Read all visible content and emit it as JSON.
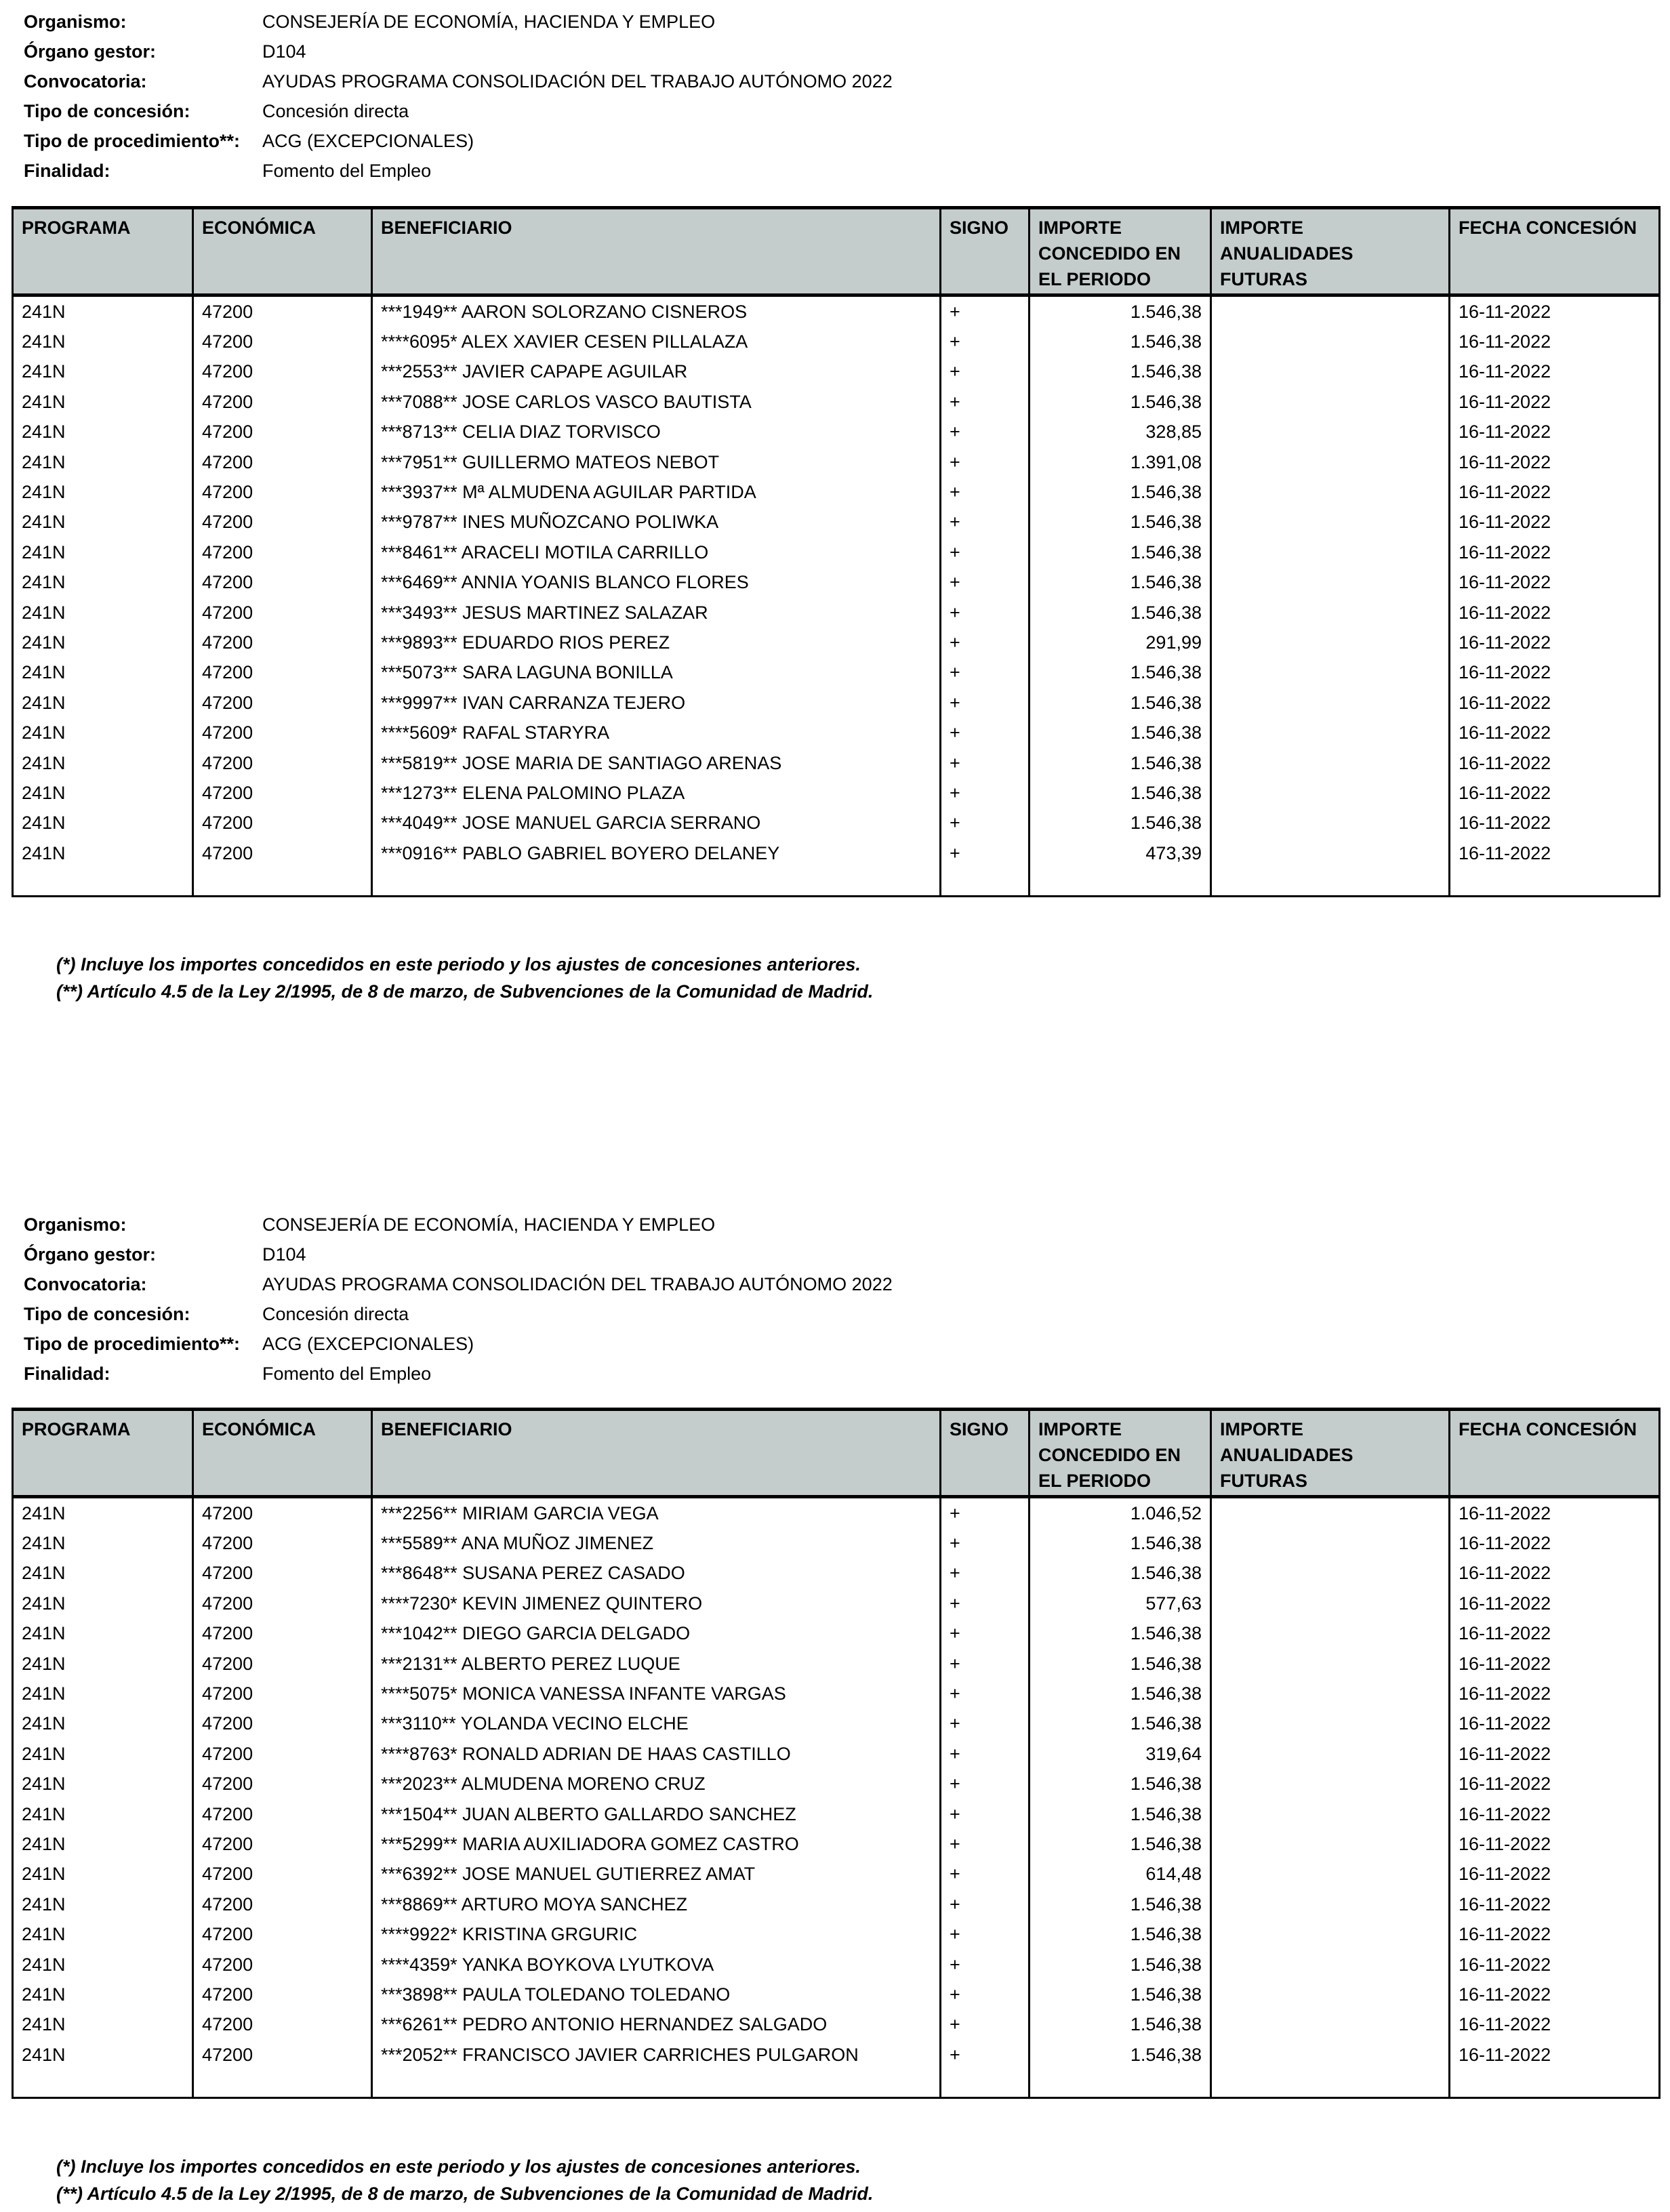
{
  "meta": [
    {
      "label": "Organismo:",
      "value": "CONSEJERÍA DE ECONOMÍA, HACIENDA Y EMPLEO"
    },
    {
      "label": "Órgano gestor:",
      "value": "D104"
    },
    {
      "label": "Convocatoria:",
      "value": "AYUDAS PROGRAMA CONSOLIDACIÓN DEL TRABAJO AUTÓNOMO 2022"
    },
    {
      "label": "Tipo de concesión:",
      "value": "Concesión directa"
    },
    {
      "label": "Tipo de procedimiento**:",
      "value": "ACG (EXCEPCIONALES)"
    },
    {
      "label": "Finalidad:",
      "value": "Fomento del Empleo"
    }
  ],
  "columns": [
    "PROGRAMA",
    "ECONÓMICA",
    "BENEFICIARIO",
    "SIGNO",
    "IMPORTE CONCEDIDO EN EL PERIODO",
    "IMPORTE ANUALIDADES FUTURAS",
    "FECHA CONCESIÓN"
  ],
  "footnotes": [
    "(*) Incluye los importes concedidos en este periodo y los ajustes de concesiones anteriores.",
    "(**) Artículo 4.5 de la Ley 2/1995, de 8 de marzo, de Subvenciones de la Comunidad de Madrid."
  ],
  "tables": [
    {
      "rows": [
        [
          "241N",
          "47200",
          "***1949** AARON SOLORZANO CISNEROS",
          "+",
          "1.546,38",
          "",
          "16-11-2022"
        ],
        [
          "241N",
          "47200",
          "****6095* ALEX XAVIER CESEN PILLALAZA",
          "+",
          "1.546,38",
          "",
          "16-11-2022"
        ],
        [
          "241N",
          "47200",
          "***2553** JAVIER CAPAPE AGUILAR",
          "+",
          "1.546,38",
          "",
          "16-11-2022"
        ],
        [
          "241N",
          "47200",
          "***7088** JOSE CARLOS VASCO BAUTISTA",
          "+",
          "1.546,38",
          "",
          "16-11-2022"
        ],
        [
          "241N",
          "47200",
          "***8713** CELIA DIAZ TORVISCO",
          "+",
          "328,85",
          "",
          "16-11-2022"
        ],
        [
          "241N",
          "47200",
          "***7951** GUILLERMO MATEOS NEBOT",
          "+",
          "1.391,08",
          "",
          "16-11-2022"
        ],
        [
          "241N",
          "47200",
          "***3937** Mª ALMUDENA AGUILAR PARTIDA",
          "+",
          "1.546,38",
          "",
          "16-11-2022"
        ],
        [
          "241N",
          "47200",
          "***9787** INES MUÑOZCANO POLIWKA",
          "+",
          "1.546,38",
          "",
          "16-11-2022"
        ],
        [
          "241N",
          "47200",
          "***8461** ARACELI MOTILA CARRILLO",
          "+",
          "1.546,38",
          "",
          "16-11-2022"
        ],
        [
          "241N",
          "47200",
          "***6469** ANNIA YOANIS BLANCO FLORES",
          "+",
          "1.546,38",
          "",
          "16-11-2022"
        ],
        [
          "241N",
          "47200",
          "***3493** JESUS MARTINEZ SALAZAR",
          "+",
          "1.546,38",
          "",
          "16-11-2022"
        ],
        [
          "241N",
          "47200",
          "***9893** EDUARDO RIOS PEREZ",
          "+",
          "291,99",
          "",
          "16-11-2022"
        ],
        [
          "241N",
          "47200",
          "***5073** SARA LAGUNA BONILLA",
          "+",
          "1.546,38",
          "",
          "16-11-2022"
        ],
        [
          "241N",
          "47200",
          "***9997** IVAN CARRANZA TEJERO",
          "+",
          "1.546,38",
          "",
          "16-11-2022"
        ],
        [
          "241N",
          "47200",
          "****5609* RAFAL STARYRA",
          "+",
          "1.546,38",
          "",
          "16-11-2022"
        ],
        [
          "241N",
          "47200",
          "***5819** JOSE MARIA DE SANTIAGO ARENAS",
          "+",
          "1.546,38",
          "",
          "16-11-2022"
        ],
        [
          "241N",
          "47200",
          "***1273** ELENA PALOMINO PLAZA",
          "+",
          "1.546,38",
          "",
          "16-11-2022"
        ],
        [
          "241N",
          "47200",
          "***4049** JOSE MANUEL GARCIA SERRANO",
          "+",
          "1.546,38",
          "",
          "16-11-2022"
        ],
        [
          "241N",
          "47200",
          "***0916** PABLO GABRIEL BOYERO DELANEY",
          "+",
          "473,39",
          "",
          "16-11-2022"
        ]
      ]
    },
    {
      "rows": [
        [
          "241N",
          "47200",
          "***2256** MIRIAM GARCIA VEGA",
          "+",
          "1.046,52",
          "",
          "16-11-2022"
        ],
        [
          "241N",
          "47200",
          "***5589** ANA MUÑOZ JIMENEZ",
          "+",
          "1.546,38",
          "",
          "16-11-2022"
        ],
        [
          "241N",
          "47200",
          "***8648** SUSANA PEREZ CASADO",
          "+",
          "1.546,38",
          "",
          "16-11-2022"
        ],
        [
          "241N",
          "47200",
          "****7230* KEVIN JIMENEZ QUINTERO",
          "+",
          "577,63",
          "",
          "16-11-2022"
        ],
        [
          "241N",
          "47200",
          "***1042** DIEGO GARCIA DELGADO",
          "+",
          "1.546,38",
          "",
          "16-11-2022"
        ],
        [
          "241N",
          "47200",
          "***2131** ALBERTO PEREZ LUQUE",
          "+",
          "1.546,38",
          "",
          "16-11-2022"
        ],
        [
          "241N",
          "47200",
          "****5075* MONICA VANESSA INFANTE VARGAS",
          "+",
          "1.546,38",
          "",
          "16-11-2022"
        ],
        [
          "241N",
          "47200",
          "***3110** YOLANDA VECINO ELCHE",
          "+",
          "1.546,38",
          "",
          "16-11-2022"
        ],
        [
          "241N",
          "47200",
          "****8763* RONALD ADRIAN DE HAAS CASTILLO",
          "+",
          "319,64",
          "",
          "16-11-2022"
        ],
        [
          "241N",
          "47200",
          "***2023** ALMUDENA MORENO CRUZ",
          "+",
          "1.546,38",
          "",
          "16-11-2022"
        ],
        [
          "241N",
          "47200",
          "***1504** JUAN ALBERTO GALLARDO SANCHEZ",
          "+",
          "1.546,38",
          "",
          "16-11-2022"
        ],
        [
          "241N",
          "47200",
          "***5299** MARIA AUXILIADORA GOMEZ CASTRO",
          "+",
          "1.546,38",
          "",
          "16-11-2022"
        ],
        [
          "241N",
          "47200",
          "***6392** JOSE MANUEL GUTIERREZ AMAT",
          "+",
          "614,48",
          "",
          "16-11-2022"
        ],
        [
          "241N",
          "47200",
          "***8869** ARTURO MOYA SANCHEZ",
          "+",
          "1.546,38",
          "",
          "16-11-2022"
        ],
        [
          "241N",
          "47200",
          "****9922* KRISTINA GRGURIC",
          "+",
          "1.546,38",
          "",
          "16-11-2022"
        ],
        [
          "241N",
          "47200",
          "****4359* YANKA BOYKOVA LYUTKOVA",
          "+",
          "1.546,38",
          "",
          "16-11-2022"
        ],
        [
          "241N",
          "47200",
          "***3898** PAULA TOLEDANO TOLEDANO",
          "+",
          "1.546,38",
          "",
          "16-11-2022"
        ],
        [
          "241N",
          "47200",
          "***6261** PEDRO ANTONIO HERNANDEZ SALGADO",
          "+",
          "1.546,38",
          "",
          "16-11-2022"
        ],
        [
          "241N",
          "47200",
          "***2052** FRANCISCO JAVIER CARRICHES PULGARON",
          "+",
          "1.546,38",
          "",
          "16-11-2022"
        ]
      ]
    }
  ]
}
